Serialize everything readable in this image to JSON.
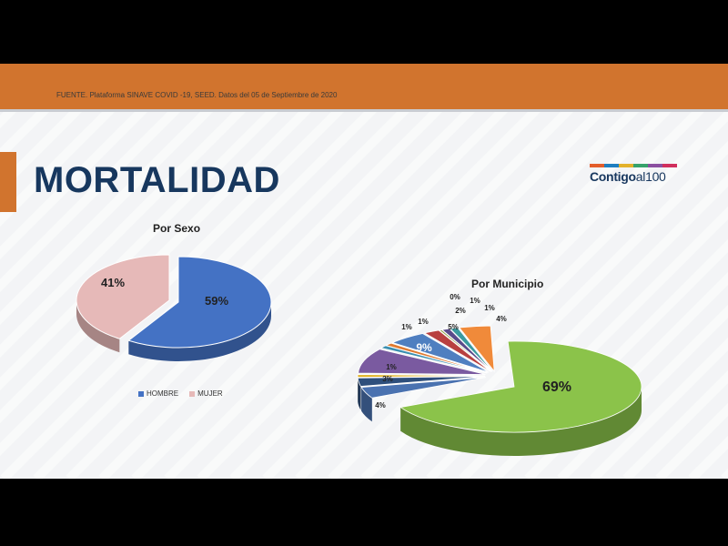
{
  "header": {
    "source": "FUENTE. Plataforma SINAVE COVID -19, SEED. Datos del 05 de Septiembre de 2020"
  },
  "page_title": "MORTALIDAD",
  "logo": {
    "text_bold": "Contigo",
    "text_light": "al100",
    "bar_colors": [
      "#e35d2a",
      "#1f7fc0",
      "#e3b12a",
      "#37a36b",
      "#8b4fa0",
      "#d12f5d"
    ]
  },
  "colors": {
    "accent": "#d1742e",
    "title": "#17375e"
  },
  "chart_data": [
    {
      "type": "pie",
      "title": "Por Sexo",
      "categories": [
        "HOMBRE",
        "MUJER"
      ],
      "values": [
        59,
        41
      ],
      "labels": [
        "59%",
        "41%"
      ],
      "colors": [
        "#4472c4",
        "#e6b9b8"
      ],
      "legend": "bottom"
    },
    {
      "type": "pie",
      "title": "Por Municipio",
      "values": [
        69,
        4,
        3,
        1,
        9,
        1,
        1,
        5,
        2,
        0,
        1,
        1,
        4
      ],
      "labels": [
        "69%",
        "4%",
        "3%",
        "1%",
        "9%",
        "1%",
        "1%",
        "5%",
        "2%",
        "0%",
        "1%",
        "1%",
        "4%"
      ],
      "colors": [
        "#8bc34a",
        "#4a72b0",
        "#2e4f7c",
        "#e0b020",
        "#7a5aa0",
        "#3b8fb0",
        "#e07a30",
        "#4f7fc0",
        "#b84040",
        "#8a9a40",
        "#5a4a8a",
        "#3a9aa0",
        "#f08a3a"
      ]
    }
  ]
}
